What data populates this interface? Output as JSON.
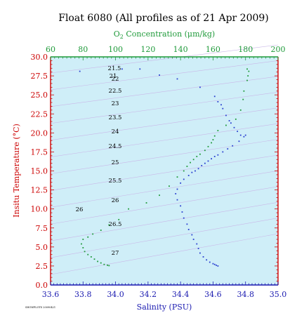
{
  "chart_data": {
    "type": "scatter",
    "title": "Float 6080  (All profiles as of 21 Apr 2009)",
    "xlabel": "Salinity (PSU)",
    "ylabel": "Insitu Temperature (°C)",
    "x2label_prefix": "O",
    "x2label_sub": "2",
    "x2label_suffix": " Concentration (μm/kg)",
    "xlim": [
      33.6,
      35.0
    ],
    "ylim": [
      0.0,
      30.0
    ],
    "x2lim": [
      60,
      200
    ],
    "xticks": [
      "33.6",
      "33.8",
      "34.0",
      "34.2",
      "34.4",
      "34.6",
      "34.8",
      "35.0"
    ],
    "yticks": [
      "0.0",
      "2.5",
      "5.0",
      "7.5",
      "10.0",
      "12.5",
      "15.0",
      "17.5",
      "20.0",
      "22.5",
      "25.0",
      "27.5",
      "30.0"
    ],
    "x2ticks": [
      "60",
      "80",
      "100",
      "120",
      "140",
      "160",
      "180",
      "200"
    ],
    "density_labels": [
      "21",
      "21.5",
      "22",
      "22.5",
      "23",
      "23.5",
      "24",
      "24.5",
      "25",
      "25.5",
      "26",
      "26.5",
      "27"
    ],
    "footnote": "SHOWPLOTS 20090421",
    "series": [
      {
        "axis": "salinity",
        "color": "#2a3fd0",
        "points": [
          [
            33.78,
            28.1
          ],
          [
            34.04,
            28.4
          ],
          [
            34.15,
            28.4
          ],
          [
            34.27,
            27.6
          ],
          [
            34.38,
            27.1
          ],
          [
            34.52,
            26.0
          ],
          [
            34.61,
            24.8
          ],
          [
            34.63,
            24.1
          ],
          [
            34.65,
            23.7
          ],
          [
            34.66,
            23.2
          ],
          [
            34.68,
            22.3
          ],
          [
            34.7,
            21.6
          ],
          [
            34.71,
            21.3
          ],
          [
            34.73,
            20.7
          ],
          [
            34.75,
            20.2
          ],
          [
            34.77,
            19.7
          ],
          [
            34.79,
            19.5
          ],
          [
            34.8,
            19.7
          ],
          [
            34.76,
            18.9
          ],
          [
            34.72,
            18.3
          ],
          [
            34.69,
            17.9
          ],
          [
            34.66,
            17.5
          ],
          [
            34.63,
            17.1
          ],
          [
            34.61,
            16.9
          ],
          [
            34.59,
            16.6
          ],
          [
            34.57,
            16.3
          ],
          [
            34.55,
            16.0
          ],
          [
            34.53,
            15.7
          ],
          [
            34.51,
            15.3
          ],
          [
            34.49,
            15.0
          ],
          [
            34.47,
            14.8
          ],
          [
            34.45,
            14.4
          ],
          [
            34.42,
            13.9
          ],
          [
            34.4,
            13.4
          ],
          [
            34.38,
            12.6
          ],
          [
            34.37,
            12.0
          ],
          [
            34.38,
            11.2
          ],
          [
            34.4,
            10.4
          ],
          [
            34.41,
            9.6
          ],
          [
            34.42,
            8.8
          ],
          [
            34.44,
            8.0
          ],
          [
            34.45,
            7.3
          ],
          [
            34.47,
            6.6
          ],
          [
            34.48,
            6.0
          ],
          [
            34.5,
            5.4
          ],
          [
            34.51,
            4.8
          ],
          [
            34.52,
            4.2
          ],
          [
            34.54,
            3.7
          ],
          [
            34.56,
            3.3
          ],
          [
            34.58,
            3.0
          ],
          [
            34.6,
            2.8
          ],
          [
            34.61,
            2.7
          ],
          [
            34.62,
            2.6
          ],
          [
            34.63,
            2.5
          ]
        ]
      },
      {
        "axis": "oxygen",
        "color": "#1f9a3a",
        "points": [
          [
            181.0,
            28.4
          ],
          [
            182.0,
            28.1
          ],
          [
            181.5,
            27.5
          ],
          [
            181.0,
            26.9
          ],
          [
            179.0,
            25.5
          ],
          [
            178.5,
            24.4
          ],
          [
            177.0,
            23.0
          ],
          [
            174.0,
            21.8
          ],
          [
            168.0,
            21.0
          ],
          [
            163.0,
            20.3
          ],
          [
            161.0,
            19.6
          ],
          [
            160.0,
            19.1
          ],
          [
            159.0,
            18.7
          ],
          [
            157.0,
            18.2
          ],
          [
            155.0,
            17.7
          ],
          [
            152.0,
            17.2
          ],
          [
            150.0,
            16.9
          ],
          [
            148.0,
            16.5
          ],
          [
            146.0,
            16.1
          ],
          [
            144.0,
            15.6
          ],
          [
            142.0,
            15.0
          ],
          [
            138.0,
            14.2
          ],
          [
            133.0,
            13.0
          ],
          [
            127.0,
            11.8
          ],
          [
            119.0,
            10.8
          ],
          [
            108.0,
            10.0
          ],
          [
            102.0,
            8.6
          ],
          [
            96.0,
            7.9
          ],
          [
            91.0,
            7.2
          ],
          [
            86.0,
            6.7
          ],
          [
            83.0,
            6.3
          ],
          [
            80.0,
            6.0
          ],
          [
            79.0,
            5.4
          ],
          [
            80.0,
            4.9
          ],
          [
            81.0,
            4.4
          ],
          [
            83.0,
            4.0
          ],
          [
            85.0,
            3.7
          ],
          [
            87.0,
            3.4
          ],
          [
            89.0,
            3.1
          ],
          [
            91.0,
            2.9
          ],
          [
            93.0,
            2.7
          ],
          [
            95.0,
            2.6
          ],
          [
            96.0,
            2.55
          ]
        ]
      }
    ]
  },
  "colors": {
    "plot_background": "#cfeef8",
    "left_axis": "#cc0000",
    "bottom_axis": "#1a1ab0",
    "top_axis": "#1f9a3a",
    "density_lines": "#c9b8e8"
  }
}
